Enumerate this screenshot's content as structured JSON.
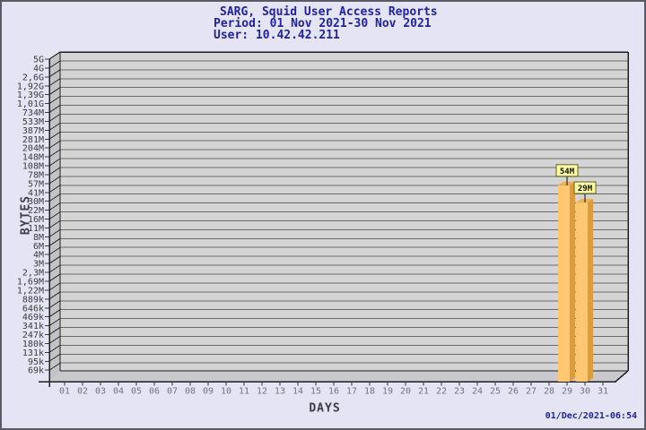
{
  "title": {
    "line1": "SARG, Squid User Access Reports",
    "line2": "Period: 01 Nov 2021-30 Nov 2021",
    "line3": "User: 10.42.42.211"
  },
  "footer": {
    "timestamp": "01/Dec/2021-06:54"
  },
  "chart_data": {
    "type": "bar",
    "title": "SARG, Squid User Access Reports",
    "subtitle_period": "Period: 01 Nov 2021-30 Nov 2021",
    "subtitle_user": "User: 10.42.42.211",
    "xlabel": "DAYS",
    "ylabel": "BYTES",
    "y_axis": {
      "scale": "log",
      "min_tick_value": 69000,
      "tick_ratio": 1.3774
    },
    "y_ticks": [
      "5G",
      "4G",
      "2,6G",
      "1,92G",
      "1,39G",
      "1,01G",
      "734M",
      "533M",
      "387M",
      "281M",
      "204M",
      "148M",
      "108M",
      "78M",
      "57M",
      "41M",
      "30M",
      "22M",
      "16M",
      "11M",
      "8M",
      "6M",
      "4M",
      "3M",
      "2,3M",
      "1,69M",
      "1,22M",
      "889k",
      "646k",
      "469k",
      "341k",
      "247k",
      "180k",
      "131k",
      "95k",
      "69k"
    ],
    "x_ticks": [
      "01",
      "02",
      "03",
      "04",
      "05",
      "06",
      "07",
      "08",
      "09",
      "10",
      "11",
      "12",
      "13",
      "14",
      "15",
      "16",
      "17",
      "18",
      "19",
      "20",
      "21",
      "22",
      "23",
      "24",
      "25",
      "26",
      "27",
      "28",
      "29",
      "30",
      "31"
    ],
    "bars": [
      {
        "day": 29,
        "label": "54M",
        "value": 54000000
      },
      {
        "day": 30,
        "label": "29M",
        "value": 29000000
      }
    ],
    "legend": null,
    "grid": "horizontal",
    "colors": {
      "background": "#E4E4F5",
      "plot_bg": "#D4D4D4",
      "wall": "#C3C3C7",
      "floor": "#C9C9CD",
      "grid": "#6b6b6b",
      "edge": "#1f1f1f",
      "bar_front": "#FFC771",
      "bar_side": "#DB9C3E",
      "bar_top": "#F0B050",
      "annotation_bg": "#FCFCA4",
      "annotation_border": "#63631F",
      "annotation_text": "#111111",
      "title_color": "#2121A3",
      "y_tick_text": "#3b3b3b",
      "x_tick_text": "#73737b"
    }
  }
}
